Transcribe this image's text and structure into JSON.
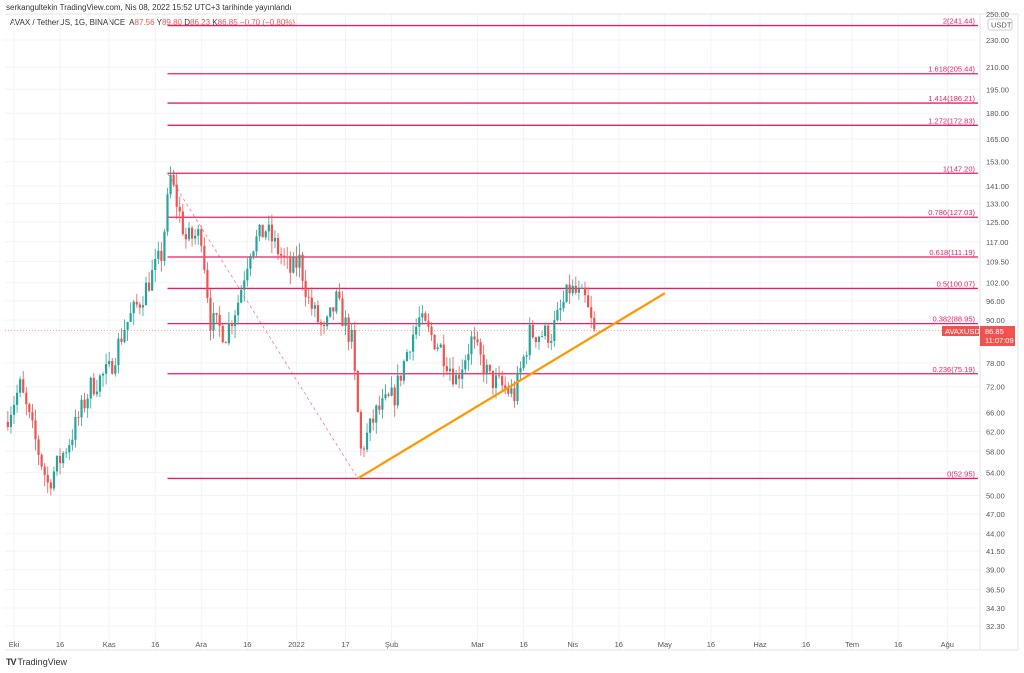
{
  "header": {
    "published": "serkangultekin TradingView.com, Nis 08, 2022 15:52 UTC+3 tarihinde yayınlandı"
  },
  "legend": {
    "symbol": "AVAX / TetherUS, 1G, BINANCE",
    "open_label": "A",
    "open": "87.56",
    "high_label": "Y",
    "high": "89.80",
    "low_label": "D",
    "low": "86.23",
    "close_label": "K",
    "close": "86.85",
    "change": "−0.70 (−0.80%)"
  },
  "price_axis": {
    "currency": "USDT",
    "ticks": [
      "230.00",
      "210.00",
      "195.00",
      "180.00",
      "165.00",
      "153.00",
      "141.00",
      "133.00",
      "125.00",
      "117.00",
      "109.50",
      "102.00",
      "96.00",
      "90.00",
      "78.00",
      "72.00",
      "66.00",
      "62.00",
      "58.00",
      "54.00",
      "50.00",
      "47.00",
      "44.00",
      "41.50",
      "39.00",
      "36.50",
      "34.30",
      "32.30"
    ],
    "top_partial": "250.00"
  },
  "price_label": {
    "symbol": "AVAXUSDT",
    "price": "86.85",
    "countdown": "11:07:09",
    "color": "#ef5350"
  },
  "time_axis": {
    "ticks": [
      {
        "label": "Eki",
        "day": 0
      },
      {
        "label": "16",
        "day": 15
      },
      {
        "label": "Kas",
        "day": 31
      },
      {
        "label": "16",
        "day": 46
      },
      {
        "label": "Ara",
        "day": 61
      },
      {
        "label": "16",
        "day": 76
      },
      {
        "label": "2022",
        "day": 92
      },
      {
        "label": "17",
        "day": 108
      },
      {
        "label": "Şub",
        "day": 123
      },
      {
        "label": "Mar",
        "day": 151
      },
      {
        "label": "16",
        "day": 166
      },
      {
        "label": "Nis",
        "day": 182
      },
      {
        "label": "16",
        "day": 197
      },
      {
        "label": "May",
        "day": 212
      },
      {
        "label": "16",
        "day": 227
      },
      {
        "label": "Haz",
        "day": 243
      },
      {
        "label": "16",
        "day": 258
      },
      {
        "label": "Tem",
        "day": 273
      },
      {
        "label": "16",
        "day": 288
      },
      {
        "label": "Ağu",
        "day": 304
      }
    ]
  },
  "fib": {
    "color": "#e91e63",
    "levels": [
      {
        "label": "2(241.44)",
        "price": 241.44
      },
      {
        "label": "1.618(205.44)",
        "price": 205.44
      },
      {
        "label": "1.414(186.21)",
        "price": 186.21
      },
      {
        "label": "1.272(172.83)",
        "price": 172.83
      },
      {
        "label": "1(147.20)",
        "price": 147.2
      },
      {
        "label": "0.786(127.03)",
        "price": 127.03
      },
      {
        "label": "0.618(111.19)",
        "price": 111.19
      },
      {
        "label": "0.5(100.07)",
        "price": 100.07
      },
      {
        "label": "0.382(88.95)",
        "price": 88.95
      },
      {
        "label": "0.236(75.19)",
        "price": 75.19
      },
      {
        "label": "0(52.95)",
        "price": 52.95
      }
    ],
    "start_day": 50
  },
  "trendline": {
    "color": "#ff9800",
    "start": {
      "day": 112,
      "price": 52.95
    },
    "end": {
      "day": 212,
      "price": 98.5
    }
  },
  "chart_data": {
    "type": "candlestick",
    "up_color": "#26a69a",
    "down_color": "#ef5350",
    "current_price": 86.85,
    "price_path": [
      [
        -3,
        64
      ],
      [
        2,
        72
      ],
      [
        7,
        60
      ],
      [
        11,
        52
      ],
      [
        18,
        60
      ],
      [
        25,
        72
      ],
      [
        31,
        76
      ],
      [
        36,
        88
      ],
      [
        41,
        96
      ],
      [
        48,
        112
      ],
      [
        51,
        145
      ],
      [
        56,
        118
      ],
      [
        61,
        120
      ],
      [
        64,
        90
      ],
      [
        69,
        86
      ],
      [
        73,
        96
      ],
      [
        77,
        115
      ],
      [
        82,
        122
      ],
      [
        90,
        106
      ],
      [
        93,
        110
      ],
      [
        96,
        96
      ],
      [
        101,
        86
      ],
      [
        105,
        96
      ],
      [
        110,
        84
      ],
      [
        113,
        58
      ],
      [
        118,
        66
      ],
      [
        124,
        70
      ],
      [
        129,
        84
      ],
      [
        132,
        90
      ],
      [
        139,
        82
      ],
      [
        144,
        74
      ],
      [
        149,
        84
      ],
      [
        155,
        74
      ],
      [
        163,
        70
      ],
      [
        168,
        86
      ],
      [
        175,
        86
      ],
      [
        181,
        100
      ],
      [
        186,
        96
      ],
      [
        189,
        86
      ]
    ]
  },
  "brand": {
    "logo": "TV",
    "name": "TradingView"
  }
}
